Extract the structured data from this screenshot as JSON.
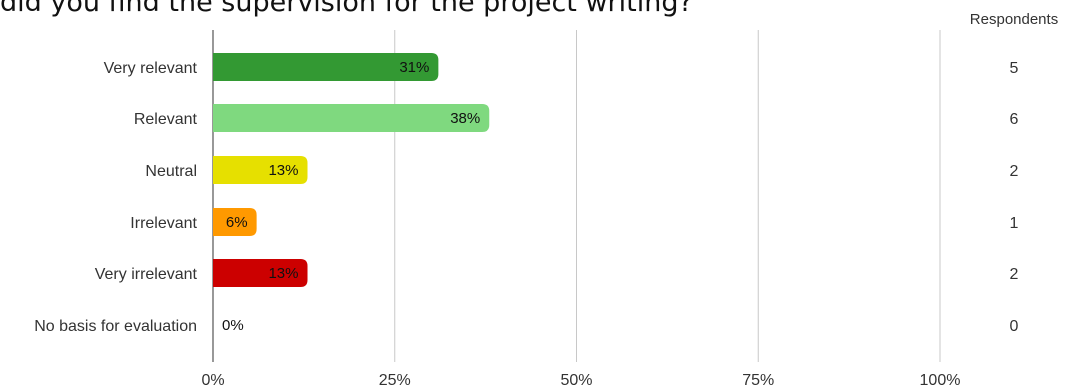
{
  "title": "did you find the supervision for the project writing?",
  "respondents_header": "Respondents",
  "chart_data": {
    "type": "bar",
    "orientation": "horizontal",
    "title": "did you find the supervision for the project writing?",
    "categories": [
      "Very relevant",
      "Relevant",
      "Neutral",
      "Irrelevant",
      "Very irrelevant",
      "No basis for evaluation"
    ],
    "values": [
      31,
      38,
      13,
      6,
      13,
      0
    ],
    "value_labels": [
      "31%",
      "38%",
      "13%",
      "6%",
      "13%",
      "0%"
    ],
    "respondents": [
      "5",
      "6",
      "2",
      "1",
      "2",
      "0"
    ],
    "colors": [
      "#339933",
      "#7fd97f",
      "#e6e000",
      "#ff9900",
      "#cc0000",
      "#999999"
    ],
    "xlim": [
      0,
      100
    ],
    "xticks": [
      "0%",
      "25%",
      "50%",
      "75%",
      "100%"
    ],
    "xtick_values": [
      0,
      25,
      50,
      75,
      100
    ],
    "grid": true
  }
}
